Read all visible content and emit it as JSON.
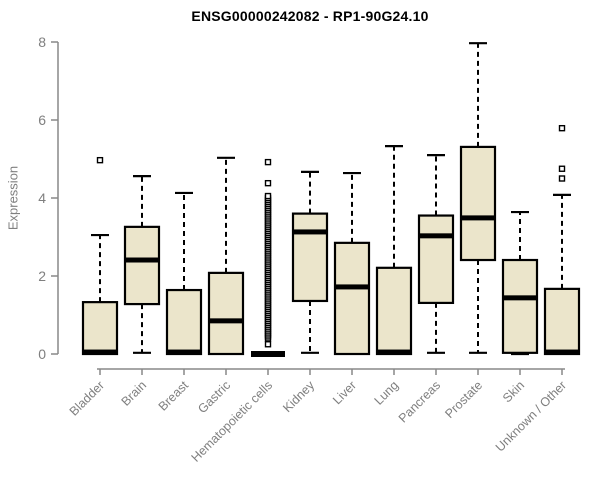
{
  "chart_data": {
    "type": "boxplot",
    "title": "ENSG00000242082 - RP1-90G24.10",
    "ylabel": "Expression",
    "xlabel": "",
    "ylim": [
      0,
      8
    ],
    "yticks": [
      0,
      2,
      4,
      6,
      8
    ],
    "grid": false,
    "legend": null,
    "colors": {
      "box_fill": "#ebe5cb",
      "box_stroke": "#000000",
      "median": "#000000",
      "axis": "#888888",
      "tick_text": "#7f7f7f",
      "title_text": "#000000",
      "outlier_fill": "#ffffff"
    },
    "categories": [
      "Bladder",
      "Brain",
      "Breast",
      "Gastric",
      "Hematopoietic cells",
      "Kidney",
      "Liver",
      "Lung",
      "Pancreas",
      "Prostate",
      "Skin",
      "Unknown / Other"
    ],
    "series": [
      {
        "name": "Bladder",
        "whisker_low": 0,
        "q1": 0,
        "median": 0.05,
        "q3": 1.33,
        "whisker_high": 3.05,
        "outliers": [
          4.97
        ]
      },
      {
        "name": "Brain",
        "whisker_low": 0.03,
        "q1": 1.28,
        "median": 2.41,
        "q3": 3.26,
        "whisker_high": 4.56,
        "outliers": []
      },
      {
        "name": "Breast",
        "whisker_low": 0,
        "q1": 0,
        "median": 0.05,
        "q3": 1.64,
        "whisker_high": 4.13,
        "outliers": []
      },
      {
        "name": "Gastric",
        "whisker_low": 0,
        "q1": 0,
        "median": 0.85,
        "q3": 2.08,
        "whisker_high": 5.03,
        "outliers": []
      },
      {
        "name": "Hematopoietic cells",
        "whisker_low": 0,
        "q1": 0,
        "median": 0,
        "q3": 0,
        "whisker_high": 0,
        "outliers": [
          0.25,
          0.4,
          0.45,
          0.5,
          0.55,
          0.6,
          0.65,
          0.7,
          0.75,
          0.8,
          0.85,
          0.9,
          0.95,
          1.0,
          1.05,
          1.1,
          1.15,
          1.2,
          1.25,
          1.3,
          1.35,
          1.4,
          1.45,
          1.5,
          1.55,
          1.6,
          1.65,
          1.7,
          1.75,
          1.8,
          1.85,
          1.9,
          1.95,
          2.0,
          2.05,
          2.1,
          2.15,
          2.2,
          2.25,
          2.3,
          2.35,
          2.4,
          2.45,
          2.5,
          2.55,
          2.6,
          2.65,
          2.7,
          2.75,
          2.8,
          2.85,
          2.9,
          2.95,
          3.0,
          3.05,
          3.1,
          3.15,
          3.2,
          3.25,
          3.3,
          3.35,
          3.4,
          3.45,
          3.5,
          3.55,
          3.6,
          3.65,
          3.7,
          3.75,
          3.8,
          3.85,
          3.9,
          3.95,
          4.0,
          4.05,
          4.38,
          4.92
        ]
      },
      {
        "name": "Kidney",
        "whisker_low": 0.03,
        "q1": 1.36,
        "median": 3.13,
        "q3": 3.6,
        "whisker_high": 4.67,
        "outliers": []
      },
      {
        "name": "Liver",
        "whisker_low": 0,
        "q1": 0,
        "median": 1.72,
        "q3": 2.85,
        "whisker_high": 4.64,
        "outliers": []
      },
      {
        "name": "Lung",
        "whisker_low": 0,
        "q1": 0,
        "median": 0.05,
        "q3": 2.21,
        "whisker_high": 5.33,
        "outliers": []
      },
      {
        "name": "Pancreas",
        "whisker_low": 0.03,
        "q1": 1.31,
        "median": 3.03,
        "q3": 3.55,
        "whisker_high": 5.1,
        "outliers": []
      },
      {
        "name": "Prostate",
        "whisker_low": 0.03,
        "q1": 2.41,
        "median": 3.49,
        "q3": 5.31,
        "whisker_high": 7.97,
        "outliers": []
      },
      {
        "name": "Skin",
        "whisker_low": 0,
        "q1": 0.03,
        "median": 1.44,
        "q3": 2.41,
        "whisker_high": 3.64,
        "outliers": []
      },
      {
        "name": "Unknown / Other",
        "whisker_low": 0,
        "q1": 0,
        "median": 0.05,
        "q3": 1.67,
        "whisker_high": 4.08,
        "outliers": [
          4.5,
          4.75,
          5.79
        ]
      }
    ]
  }
}
